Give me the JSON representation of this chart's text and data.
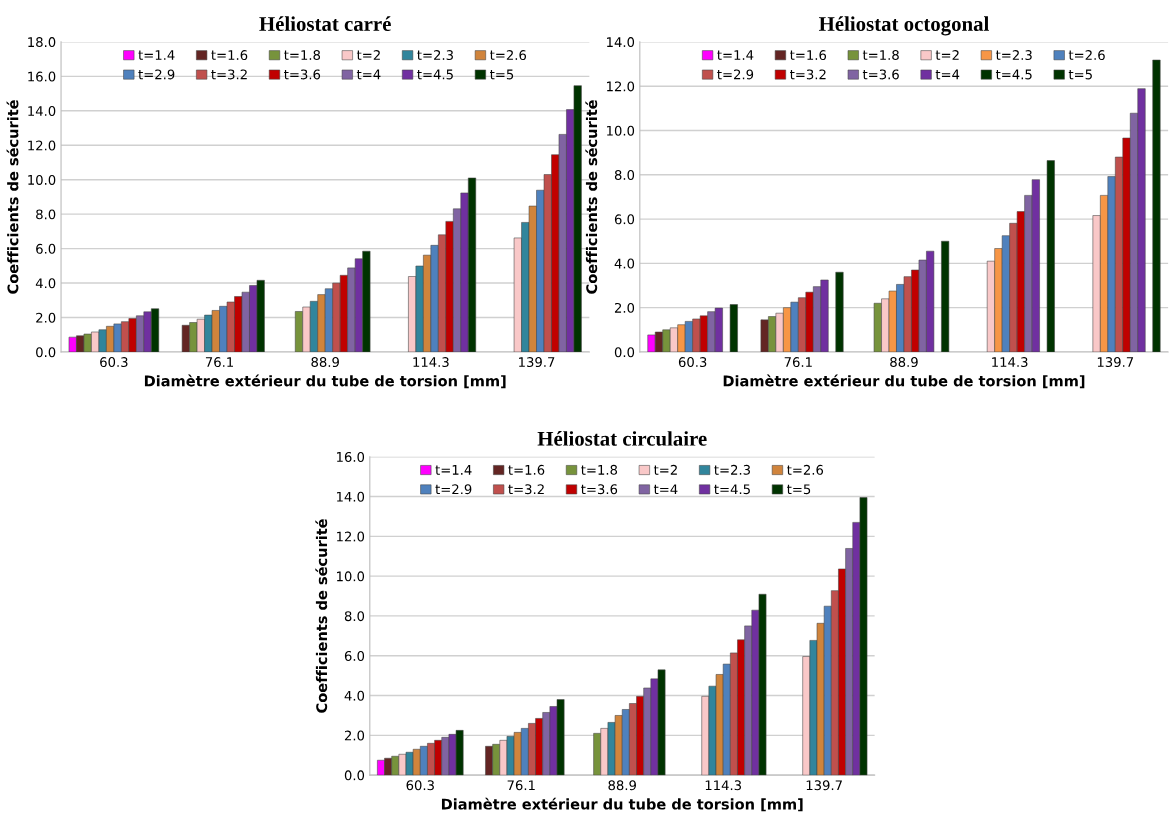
{
  "chart_data": [
    {
      "type": "bar",
      "title": "Héliostat carré",
      "xlabel": "Diamètre extérieur du tube de torsion [mm]",
      "ylabel": "Coefficients de sécurité",
      "categories": [
        "60.3",
        "76.1",
        "88.9",
        "114.3",
        "139.7"
      ],
      "ylim": [
        0,
        18
      ],
      "yticks": [
        {
          "value": 0,
          "label": "0.0"
        },
        {
          "value": 2,
          "label": "2.0"
        },
        {
          "value": 4,
          "label": "4.0"
        },
        {
          "value": 6,
          "label": "6.0"
        },
        {
          "value": 8,
          "label": "8.0"
        },
        {
          "value": 10,
          "label": "10.0"
        },
        {
          "value": 12,
          "label": "12.0"
        },
        {
          "value": 14,
          "label": "14.0"
        },
        {
          "value": 16,
          "label": "16.0"
        },
        {
          "value": 18,
          "label": "18.0"
        }
      ],
      "grid": "y",
      "legend": "top",
      "series": [
        {
          "name": "t=1.4",
          "color": "#ff00ff",
          "values": [
            0.86,
            null,
            null,
            null,
            null
          ]
        },
        {
          "name": "t=1.6",
          "color": "#632523",
          "values": [
            0.94,
            1.55,
            null,
            null,
            null
          ]
        },
        {
          "name": "t=1.8",
          "color": "#77933c",
          "values": [
            1.04,
            1.71,
            2.35,
            null,
            null
          ]
        },
        {
          "name": "t=2",
          "color": "#f9c8c8",
          "values": [
            1.16,
            1.9,
            2.61,
            4.38,
            6.62
          ]
        },
        {
          "name": "t=2.3",
          "color": "#31859c",
          "values": [
            1.29,
            2.14,
            2.94,
            4.99,
            7.52
          ]
        },
        {
          "name": "t=2.6",
          "color": "#d0843c",
          "values": [
            1.49,
            2.41,
            3.33,
            5.62,
            8.47
          ]
        },
        {
          "name": "t=2.9",
          "color": "#4f81bd",
          "values": [
            1.63,
            2.65,
            3.67,
            6.19,
            9.39
          ]
        },
        {
          "name": "t=3.2",
          "color": "#c0504d",
          "values": [
            1.76,
            2.9,
            4.0,
            6.8,
            10.3
          ]
        },
        {
          "name": "t=3.6",
          "color": "#c00000",
          "values": [
            1.94,
            3.22,
            4.45,
            7.58,
            11.45
          ]
        },
        {
          "name": "t=4",
          "color": "#8064a2",
          "values": [
            2.1,
            3.47,
            4.88,
            8.31,
            12.63
          ]
        },
        {
          "name": "t=4.5",
          "color": "#7030a0",
          "values": [
            2.33,
            3.86,
            5.41,
            9.23,
            14.07
          ]
        },
        {
          "name": "t=5",
          "color": "#003300",
          "values": [
            2.51,
            4.16,
            5.85,
            10.1,
            15.46
          ]
        }
      ]
    },
    {
      "type": "bar",
      "title": "Héliostat octogonal",
      "xlabel": "Diamètre extérieur du tube de torsion [mm]",
      "ylabel": "Coefficients de sécurité",
      "categories": [
        "60.3",
        "76.1",
        "88.9",
        "114.3",
        "139.7"
      ],
      "ylim": [
        0,
        14
      ],
      "yticks": [
        {
          "value": 0,
          "label": "0.0"
        },
        {
          "value": 2,
          "label": "2.0"
        },
        {
          "value": 4,
          "label": "4.0"
        },
        {
          "value": 6,
          "label": "6.0"
        },
        {
          "value": 8,
          "label": "8.0"
        },
        {
          "value": 10,
          "label": "10.0"
        },
        {
          "value": 12,
          "label": "12.0"
        },
        {
          "value": 14,
          "label": "14.0"
        }
      ],
      "grid": "y",
      "legend": "top",
      "series": [
        {
          "name": "t=1.4",
          "color": "#ff00ff",
          "values": [
            0.77,
            null,
            null,
            null,
            null
          ]
        },
        {
          "name": "t=1.6",
          "color": "#632523",
          "values": [
            0.9,
            1.45,
            null,
            null,
            null
          ]
        },
        {
          "name": "t=1.8",
          "color": "#77933c",
          "values": [
            1.0,
            1.6,
            2.2,
            null,
            null
          ]
        },
        {
          "name": "t=2",
          "color": "#f9c8c8",
          "values": [
            1.09,
            1.75,
            2.4,
            4.1,
            6.16
          ]
        },
        {
          "name": "t=2.3",
          "color": "#f79646",
          "values": [
            1.23,
            2.0,
            2.75,
            4.67,
            7.07
          ]
        },
        {
          "name": "t=2.6",
          "color": "#4f81bd",
          "values": [
            1.38,
            2.25,
            3.05,
            5.25,
            7.92
          ]
        },
        {
          "name": "t=2.9",
          "color": "#c0504d",
          "values": [
            1.49,
            2.45,
            3.4,
            5.81,
            8.8
          ]
        },
        {
          "name": "t=3.2",
          "color": "#c00000",
          "values": [
            1.63,
            2.7,
            3.7,
            6.34,
            9.66
          ]
        },
        {
          "name": "t=3.6",
          "color": "#8064a2",
          "values": [
            1.82,
            2.95,
            4.15,
            7.07,
            10.78
          ]
        },
        {
          "name": "t=4",
          "color": "#7030a0",
          "values": [
            1.98,
            3.25,
            4.55,
            7.78,
            11.89
          ]
        },
        {
          "name": "t=4.5",
          "color": "#003300",
          "values": [
            null,
            null,
            null,
            null,
            null
          ]
        },
        {
          "name": "t=5",
          "color": "#003300",
          "values": [
            2.14,
            3.6,
            5.0,
            8.64,
            13.18
          ]
        }
      ]
    },
    {
      "type": "bar",
      "title": "Héliostat circulaire",
      "xlabel": "Diamètre extérieur du tube de torsion [mm]",
      "ylabel": "Coefficients de sécurité",
      "categories": [
        "60.3",
        "76.1",
        "88.9",
        "114.3",
        "139.7"
      ],
      "ylim": [
        0,
        16
      ],
      "yticks": [
        {
          "value": 0,
          "label": "0.0"
        },
        {
          "value": 2,
          "label": "2.0"
        },
        {
          "value": 4,
          "label": "4.0"
        },
        {
          "value": 6,
          "label": "6.0"
        },
        {
          "value": 8,
          "label": "8.0"
        },
        {
          "value": 10,
          "label": "10.0"
        },
        {
          "value": 12,
          "label": "12.0"
        },
        {
          "value": 14,
          "label": "14.0"
        },
        {
          "value": 16,
          "label": "16.0"
        }
      ],
      "grid": "y",
      "legend": "top",
      "series": [
        {
          "name": "t=1.4",
          "color": "#ff00ff",
          "values": [
            0.75,
            null,
            null,
            null,
            null
          ]
        },
        {
          "name": "t=1.6",
          "color": "#632523",
          "values": [
            0.85,
            1.45,
            null,
            null,
            null
          ]
        },
        {
          "name": "t=1.8",
          "color": "#77933c",
          "values": [
            0.95,
            1.55,
            2.1,
            null,
            null
          ]
        },
        {
          "name": "t=2",
          "color": "#f9c8c8",
          "values": [
            1.05,
            1.75,
            2.35,
            3.96,
            5.96
          ]
        },
        {
          "name": "t=2.3",
          "color": "#31859c",
          "values": [
            1.15,
            1.95,
            2.65,
            4.47,
            6.77
          ]
        },
        {
          "name": "t=2.6",
          "color": "#d0843c",
          "values": [
            1.3,
            2.15,
            3.0,
            5.06,
            7.63
          ]
        },
        {
          "name": "t=2.9",
          "color": "#4f81bd",
          "values": [
            1.45,
            2.35,
            3.3,
            5.58,
            8.49
          ]
        },
        {
          "name": "t=3.2",
          "color": "#c0504d",
          "values": [
            1.6,
            2.6,
            3.6,
            6.14,
            9.27
          ]
        },
        {
          "name": "t=3.6",
          "color": "#c00000",
          "values": [
            1.75,
            2.85,
            3.96,
            6.8,
            10.36
          ]
        },
        {
          "name": "t=4",
          "color": "#8064a2",
          "values": [
            1.9,
            3.15,
            4.38,
            7.5,
            11.39
          ]
        },
        {
          "name": "t=4.5",
          "color": "#7030a0",
          "values": [
            2.05,
            3.45,
            4.84,
            8.29,
            12.7
          ]
        },
        {
          "name": "t=5",
          "color": "#003300",
          "values": [
            2.25,
            3.8,
            5.29,
            9.09,
            13.95
          ]
        }
      ]
    }
  ]
}
